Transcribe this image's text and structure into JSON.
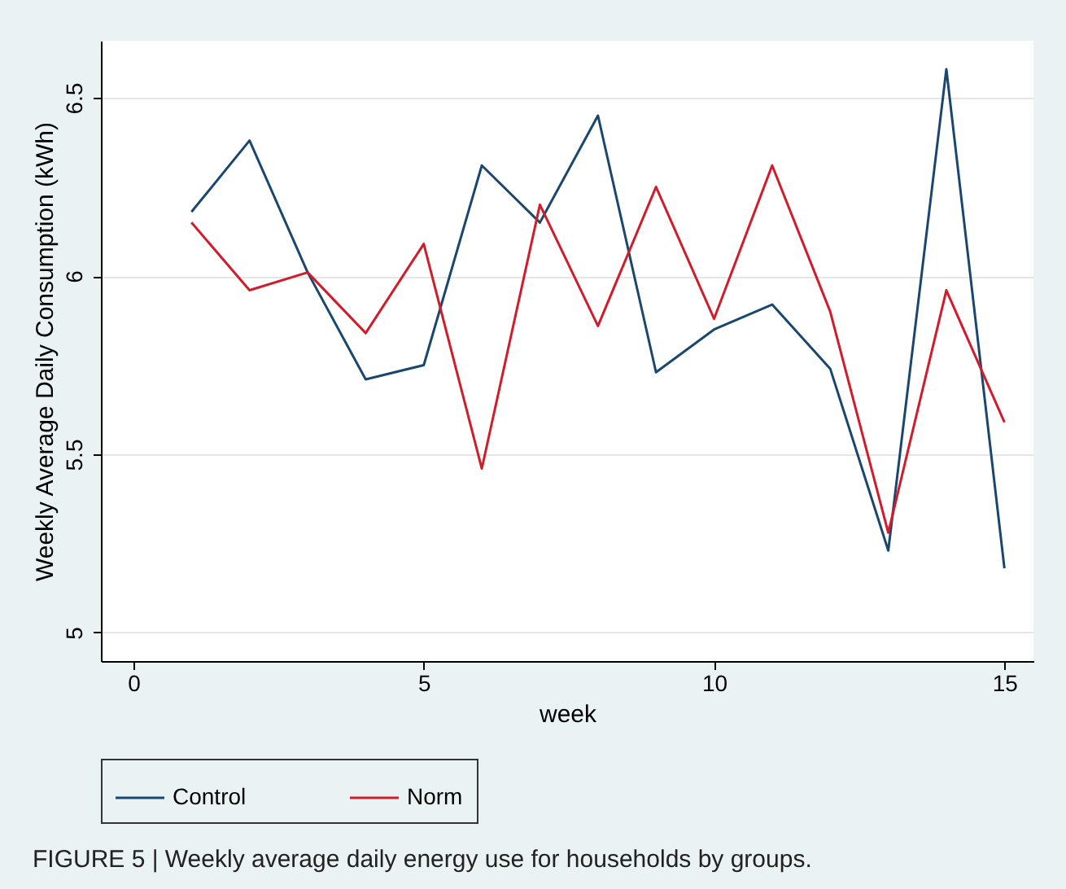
{
  "chart_data": {
    "type": "line",
    "xlabel": "week",
    "ylabel": "Weekly Average Daily Consumption (kWh)",
    "x": [
      1,
      2,
      3,
      4,
      5,
      6,
      7,
      8,
      9,
      10,
      11,
      12,
      13,
      14,
      15
    ],
    "series": [
      {
        "name": "Control",
        "color": "#1a476f",
        "values": [
          6.18,
          6.38,
          6.01,
          5.71,
          5.75,
          6.31,
          6.15,
          6.45,
          5.73,
          5.85,
          5.92,
          5.74,
          5.23,
          6.58,
          5.18
        ]
      },
      {
        "name": "Norm",
        "color": "#d01c2b",
        "values": [
          6.15,
          5.96,
          6.01,
          5.84,
          6.09,
          5.46,
          6.2,
          5.86,
          6.25,
          5.88,
          6.31,
          5.9,
          5.28,
          5.96,
          5.59
        ]
      }
    ],
    "xlim": [
      -0.56,
      15.5
    ],
    "xticks": [
      0,
      5,
      10,
      15
    ],
    "ylim": [
      4.92,
      6.66
    ],
    "yticks": [
      5,
      5.5,
      6,
      6.5
    ],
    "grid": "y",
    "legend": "bottom",
    "marker": "none",
    "line_style": "solid",
    "annotations": [
      "FIGURE 5 | Weekly average daily energy use for households by groups."
    ]
  }
}
